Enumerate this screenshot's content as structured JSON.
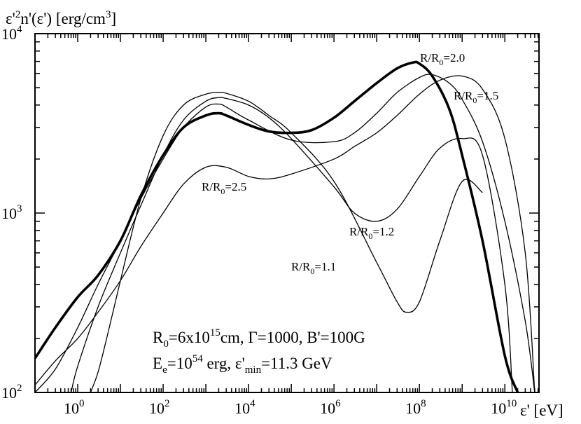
{
  "chart_data": {
    "type": "line",
    "title": "",
    "ylabel": {
      "main": "ε'",
      "sup": "2",
      "rest": "n'(ε') [erg/cm",
      "sup2": "3",
      "end": "]"
    },
    "xlabel": {
      "main": "ε' [eV]"
    },
    "x_scale": "log",
    "y_scale": "log",
    "xlim": [
      0.1,
      63000000000.0
    ],
    "ylim": [
      100,
      10000
    ],
    "x_tick_labels": [
      {
        "value": 1,
        "base": "10",
        "exp": "0"
      },
      {
        "value": 100,
        "base": "10",
        "exp": "2"
      },
      {
        "value": 10000,
        "base": "10",
        "exp": "4"
      },
      {
        "value": 1000000,
        "base": "10",
        "exp": "6"
      },
      {
        "value": 100000000,
        "base": "10",
        "exp": "8"
      },
      {
        "value": 10000000000,
        "base": "10",
        "exp": "10"
      }
    ],
    "y_tick_labels": [
      {
        "value": 100,
        "base": "10",
        "exp": "2"
      },
      {
        "value": 1000,
        "base": "10",
        "exp": "3"
      },
      {
        "value": 10000,
        "base": "10",
        "exp": "4"
      }
    ],
    "grid": false,
    "series": [
      {
        "name": "R/R0=1.1",
        "label": {
          "pre": "R/R",
          "sub": "0",
          "post": "=1.1"
        },
        "bold": false,
        "x": [
          2.0,
          3,
          5,
          10,
          30,
          100,
          300,
          1000,
          2000,
          3000,
          10000,
          30000,
          100000,
          1000000,
          10000000,
          30000000,
          50000000,
          100000000,
          300000000,
          1000000000,
          3000000000
        ],
        "y": [
          100,
          130,
          210,
          420,
          1200,
          2700,
          4000,
          4600,
          4700,
          4650,
          4200,
          3500,
          2800,
          1500,
          530,
          320,
          280,
          320,
          700,
          1500,
          1300
        ]
      },
      {
        "name": "R/R0=1.2",
        "label": {
          "pre": "R/R",
          "sub": "0",
          "post": "=1.2"
        },
        "bold": false,
        "x": [
          0.7,
          1,
          3,
          10,
          30,
          100,
          300,
          1000,
          2000,
          3000,
          10000,
          30000,
          100000,
          1000000,
          3000000,
          10000000,
          30000000,
          100000000,
          300000000,
          1000000000,
          3000000000,
          10000000000,
          15000000000
        ],
        "y": [
          100,
          140,
          300,
          600,
          1100,
          2100,
          3300,
          4200,
          4400,
          4350,
          4000,
          3400,
          2600,
          1400,
          1000,
          900,
          1050,
          1600,
          2300,
          2600,
          2100,
          400,
          100
        ]
      },
      {
        "name": "R/R0=1.5",
        "label": {
          "pre": "R/R",
          "sub": "0",
          "post": "=1.5"
        },
        "bold": false,
        "x": [
          0.1,
          0.3,
          1,
          3,
          10,
          30,
          100,
          300,
          1000,
          2000,
          3000,
          10000,
          100000,
          1000000,
          3000000,
          10000000,
          30000000,
          100000000,
          200000000,
          500000000,
          1000000000,
          3000000000,
          10000000000,
          30000000000,
          50000000000
        ],
        "y": [
          100,
          135,
          230,
          400,
          700,
          1200,
          2000,
          3000,
          3900,
          4050,
          3900,
          3300,
          2550,
          2500,
          2800,
          3600,
          4700,
          5700,
          5900,
          5300,
          4300,
          2500,
          900,
          250,
          100
        ]
      },
      {
        "name": "R/R0=2.0",
        "label": {
          "pre": "R/R",
          "sub": "0",
          "post": "=2.0"
        },
        "bold": true,
        "x": [
          0.1,
          0.3,
          1,
          3,
          10,
          30,
          100,
          300,
          1000,
          2000,
          3000,
          10000,
          30000,
          100000,
          300000,
          1000000,
          3000000,
          10000000,
          30000000,
          70000000,
          100000000,
          200000000,
          500000000,
          1000000000,
          3000000000,
          10000000000,
          20000000000
        ],
        "y": [
          155,
          230,
          340,
          450,
          700,
          1250,
          2100,
          3000,
          3500,
          3600,
          3500,
          3100,
          2850,
          2800,
          2900,
          3400,
          4200,
          5300,
          6400,
          6900,
          6800,
          5800,
          3800,
          2100,
          700,
          160,
          100
        ]
      },
      {
        "name": "R/R0=2.5",
        "label": {
          "pre": "R/R",
          "sub": "0",
          "post": "=2.5"
        },
        "bold": false,
        "x": [
          0.1,
          0.3,
          1,
          3,
          10,
          30,
          100,
          300,
          1000,
          3000,
          10000,
          30000,
          100000,
          1000000,
          3000000,
          10000000,
          30000000,
          100000000,
          300000000,
          1000000000,
          3000000000,
          10000000000,
          30000000000,
          50000000000
        ],
        "y": [
          110,
          150,
          200,
          280,
          420,
          650,
          1000,
          1450,
          1800,
          1800,
          1600,
          1550,
          1650,
          2000,
          2350,
          2800,
          3500,
          4600,
          5500,
          5800,
          4900,
          2600,
          600,
          100
        ]
      }
    ]
  },
  "annotation": {
    "line1": {
      "a": "R",
      "a_sub": "0",
      "b": "=6x10",
      "b_sup": "15",
      "c": "cm, Γ=1000, B'=100G"
    },
    "line2": {
      "a": "E",
      "a_sub": "e",
      "b": "=10",
      "b_sup": "54",
      "c": " erg, ε'",
      "c_sub": "min",
      "d": "=11.3 GeV"
    }
  }
}
